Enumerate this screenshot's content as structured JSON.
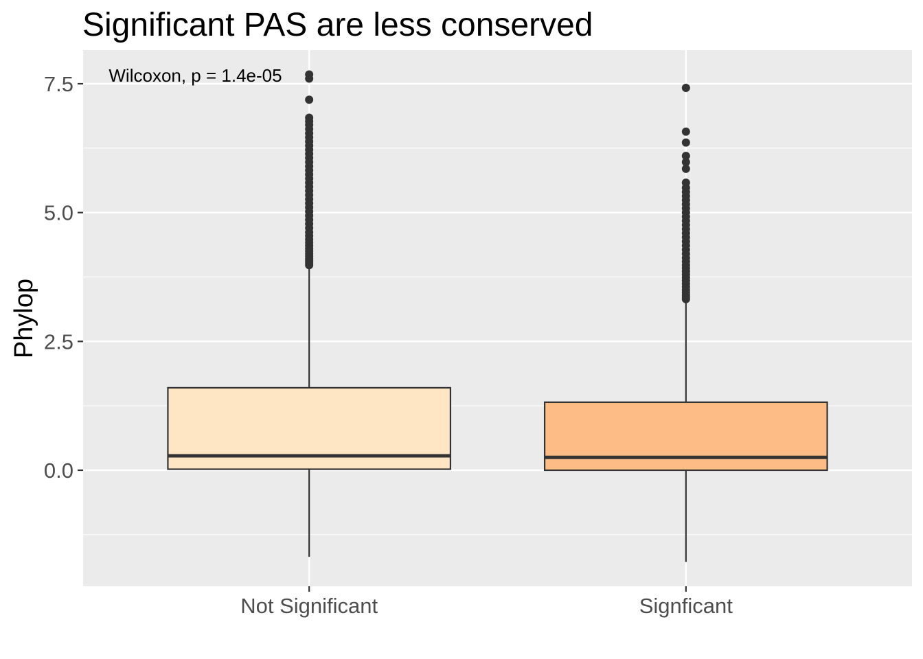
{
  "chart_data": {
    "type": "box",
    "title": "Significant PAS are less conserved",
    "xlabel": "",
    "ylabel": "Phylop",
    "ylim": [
      -2.25,
      8.3
    ],
    "yticks": [
      0.0,
      2.5,
      5.0,
      7.5
    ],
    "ytick_labels": [
      "0.0",
      "2.5",
      "5.0",
      "7.5"
    ],
    "grid": true,
    "legend": "none",
    "categories": [
      "Not Significant",
      "Signficant"
    ],
    "annotation": "Wilcoxon, p = 1.4e-05",
    "annotation_y": 7.5,
    "series": [
      {
        "category": "Not Significant",
        "color": "#fee6c5",
        "whisker_low": -1.68,
        "q1": 0.02,
        "median": 0.28,
        "q3": 1.6,
        "whisker_high": 3.95,
        "outliers": [
          3.98,
          4.02,
          4.06,
          4.1,
          4.15,
          4.2,
          4.25,
          4.3,
          4.36,
          4.42,
          4.48,
          4.55,
          4.62,
          4.7,
          4.78,
          4.86,
          4.94,
          5.02,
          5.1,
          5.18,
          5.26,
          5.34,
          5.42,
          5.5,
          5.58,
          5.66,
          5.74,
          5.82,
          5.9,
          5.98,
          6.06,
          6.14,
          6.22,
          6.3,
          6.38,
          6.46,
          6.54,
          6.62,
          6.7,
          6.77,
          6.84,
          7.19,
          7.6,
          7.68
        ]
      },
      {
        "category": "Signficant",
        "color": "#fdbc85",
        "whisker_low": -1.78,
        "q1": 0.0,
        "median": 0.25,
        "q3": 1.32,
        "whisker_high": 3.28,
        "outliers": [
          3.32,
          3.36,
          3.4,
          3.45,
          3.5,
          3.56,
          3.62,
          3.68,
          3.74,
          3.8,
          3.86,
          3.92,
          3.98,
          4.05,
          4.12,
          4.2,
          4.28,
          4.36,
          4.44,
          4.52,
          4.6,
          4.68,
          4.76,
          4.84,
          4.92,
          5.0,
          5.08,
          5.16,
          5.24,
          5.32,
          5.4,
          5.48,
          5.58,
          5.85,
          5.98,
          6.1,
          6.36,
          6.57,
          7.42
        ]
      }
    ]
  }
}
